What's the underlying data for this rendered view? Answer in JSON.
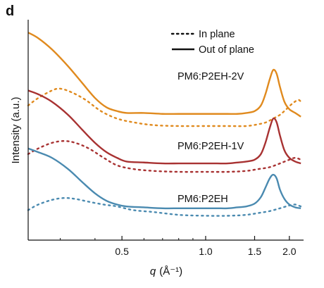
{
  "panel_label": "d",
  "chart_data": {
    "type": "line",
    "title": "",
    "xlabel": "q (Å⁻¹)",
    "xlabel_var": "q",
    "xlabel_unit": "(Å⁻¹)",
    "ylabel": "Intensity (a.u.)",
    "xscale": "log",
    "xlim": [
      0.23,
      2.25
    ],
    "xticks": [
      0.5,
      1.0,
      1.5,
      2.0
    ],
    "xtick_labels": [
      "0.5",
      "1.0",
      "1.5",
      "2.0"
    ],
    "yticks": [],
    "grid": false,
    "legend": {
      "placement": "top-right",
      "entries": [
        {
          "label": "In plane",
          "style": "dotted"
        },
        {
          "label": "Out of plane",
          "style": "solid"
        }
      ]
    },
    "series": [
      {
        "sample": "PM6:P2EH-2V",
        "color": "#e08a1e",
        "out_of_plane": [
          [
            0.23,
            95
          ],
          [
            0.25,
            92
          ],
          [
            0.28,
            86
          ],
          [
            0.32,
            77
          ],
          [
            0.36,
            68
          ],
          [
            0.4,
            60
          ],
          [
            0.44,
            55
          ],
          [
            0.48,
            53
          ],
          [
            0.52,
            52
          ],
          [
            0.6,
            52
          ],
          [
            0.7,
            51.5
          ],
          [
            0.8,
            51.5
          ],
          [
            0.9,
            51.5
          ],
          [
            1.0,
            51.5
          ],
          [
            1.1,
            51.5
          ],
          [
            1.2,
            51.5
          ],
          [
            1.3,
            51.5
          ],
          [
            1.4,
            52
          ],
          [
            1.5,
            53
          ],
          [
            1.58,
            56
          ],
          [
            1.64,
            62
          ],
          [
            1.7,
            70
          ],
          [
            1.75,
            75
          ],
          [
            1.8,
            73
          ],
          [
            1.85,
            66
          ],
          [
            1.92,
            58
          ],
          [
            2.0,
            54
          ],
          [
            2.1,
            52
          ],
          [
            2.2,
            50
          ]
        ],
        "in_plane": [
          [
            0.23,
            56
          ],
          [
            0.25,
            60
          ],
          [
            0.28,
            64
          ],
          [
            0.3,
            65
          ],
          [
            0.33,
            63
          ],
          [
            0.37,
            59
          ],
          [
            0.42,
            53
          ],
          [
            0.48,
            49
          ],
          [
            0.55,
            47
          ],
          [
            0.65,
            45.5
          ],
          [
            0.8,
            45
          ],
          [
            1.0,
            45
          ],
          [
            1.2,
            45
          ],
          [
            1.4,
            45
          ],
          [
            1.55,
            46
          ],
          [
            1.65,
            47
          ],
          [
            1.75,
            49
          ],
          [
            1.85,
            51
          ],
          [
            1.95,
            54
          ],
          [
            2.05,
            57
          ],
          [
            2.15,
            59
          ],
          [
            2.2,
            58
          ]
        ]
      },
      {
        "sample": "PM6:P2EH-1V",
        "color": "#a83232",
        "out_of_plane": [
          [
            0.23,
            64
          ],
          [
            0.25,
            62
          ],
          [
            0.28,
            58
          ],
          [
            0.32,
            51
          ],
          [
            0.36,
            43
          ],
          [
            0.4,
            36
          ],
          [
            0.44,
            31
          ],
          [
            0.48,
            28
          ],
          [
            0.52,
            26
          ],
          [
            0.6,
            25.5
          ],
          [
            0.7,
            25
          ],
          [
            0.8,
            25
          ],
          [
            0.9,
            25
          ],
          [
            1.0,
            25
          ],
          [
            1.1,
            25
          ],
          [
            1.2,
            25
          ],
          [
            1.3,
            25.5
          ],
          [
            1.4,
            26
          ],
          [
            1.5,
            27
          ],
          [
            1.58,
            30
          ],
          [
            1.64,
            36
          ],
          [
            1.7,
            44
          ],
          [
            1.75,
            49
          ],
          [
            1.8,
            47
          ],
          [
            1.85,
            40
          ],
          [
            1.92,
            32
          ],
          [
            2.0,
            28
          ],
          [
            2.1,
            26
          ],
          [
            2.2,
            25
          ]
        ],
        "in_plane": [
          [
            0.23,
            30
          ],
          [
            0.25,
            33
          ],
          [
            0.28,
            36
          ],
          [
            0.31,
            37
          ],
          [
            0.34,
            36
          ],
          [
            0.38,
            33
          ],
          [
            0.43,
            28
          ],
          [
            0.48,
            24
          ],
          [
            0.55,
            22
          ],
          [
            0.65,
            21
          ],
          [
            0.8,
            20.5
          ],
          [
            1.0,
            20.5
          ],
          [
            1.2,
            20.5
          ],
          [
            1.4,
            21
          ],
          [
            1.55,
            22
          ],
          [
            1.7,
            23
          ],
          [
            1.85,
            25
          ],
          [
            2.0,
            27
          ],
          [
            2.1,
            28
          ],
          [
            2.2,
            27
          ]
        ]
      },
      {
        "sample": "PM6:P2EH",
        "color": "#4a8ab0",
        "out_of_plane": [
          [
            0.23,
            33
          ],
          [
            0.25,
            31
          ],
          [
            0.28,
            28
          ],
          [
            0.32,
            22
          ],
          [
            0.36,
            15
          ],
          [
            0.4,
            9
          ],
          [
            0.44,
            5
          ],
          [
            0.48,
            3
          ],
          [
            0.52,
            2
          ],
          [
            0.6,
            1.5
          ],
          [
            0.7,
            1
          ],
          [
            0.8,
            1
          ],
          [
            0.9,
            1
          ],
          [
            1.0,
            1
          ],
          [
            1.1,
            1
          ],
          [
            1.2,
            1
          ],
          [
            1.3,
            1.5
          ],
          [
            1.4,
            2
          ],
          [
            1.5,
            3.5
          ],
          [
            1.58,
            7
          ],
          [
            1.64,
            12
          ],
          [
            1.7,
            17
          ],
          [
            1.75,
            19
          ],
          [
            1.8,
            17
          ],
          [
            1.85,
            11
          ],
          [
            1.92,
            6
          ],
          [
            2.0,
            3
          ],
          [
            2.1,
            1.5
          ],
          [
            2.2,
            1
          ]
        ],
        "in_plane": [
          [
            0.23,
            0
          ],
          [
            0.25,
            3
          ],
          [
            0.28,
            5.5
          ],
          [
            0.31,
            6.5
          ],
          [
            0.34,
            6
          ],
          [
            0.38,
            4.5
          ],
          [
            0.43,
            3
          ],
          [
            0.48,
            2
          ],
          [
            0.55,
            0
          ],
          [
            0.65,
            -1
          ],
          [
            0.8,
            -2.5
          ],
          [
            1.0,
            -3
          ],
          [
            1.2,
            -3
          ],
          [
            1.4,
            -2.5
          ],
          [
            1.55,
            -1.5
          ],
          [
            1.7,
            -0.5
          ],
          [
            1.85,
            1
          ],
          [
            2.0,
            2.5
          ],
          [
            2.1,
            3
          ],
          [
            2.2,
            2
          ]
        ]
      }
    ],
    "ylim": [
      -10,
      100
    ]
  }
}
